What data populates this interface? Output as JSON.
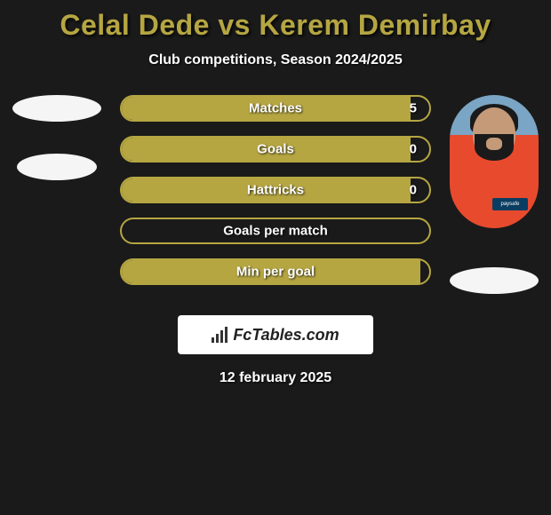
{
  "title": "Celal Dede vs Kerem Demirbay",
  "subtitle": "Club competitions, Season 2024/2025",
  "accent_color": "#b5a642",
  "bg_color": "#1a1a1a",
  "text_color": "#ffffff",
  "stats": [
    {
      "label": "Matches",
      "value": "5",
      "fill_pct": 94
    },
    {
      "label": "Goals",
      "value": "0",
      "fill_pct": 94
    },
    {
      "label": "Hattricks",
      "value": "0",
      "fill_pct": 94
    },
    {
      "label": "Goals per match",
      "value": "",
      "fill_pct": 0
    },
    {
      "label": "Min per goal",
      "value": "",
      "fill_pct": 97
    }
  ],
  "bar_style": {
    "border_color": "#b5a642",
    "fill_color": "#b5a642",
    "label_fontsize": 15,
    "label_color": "#ffffff"
  },
  "footer": {
    "logo_text": "FcTables.com",
    "date": "12 february 2025"
  },
  "player_right": {
    "sponsor_text": "paysafe"
  }
}
